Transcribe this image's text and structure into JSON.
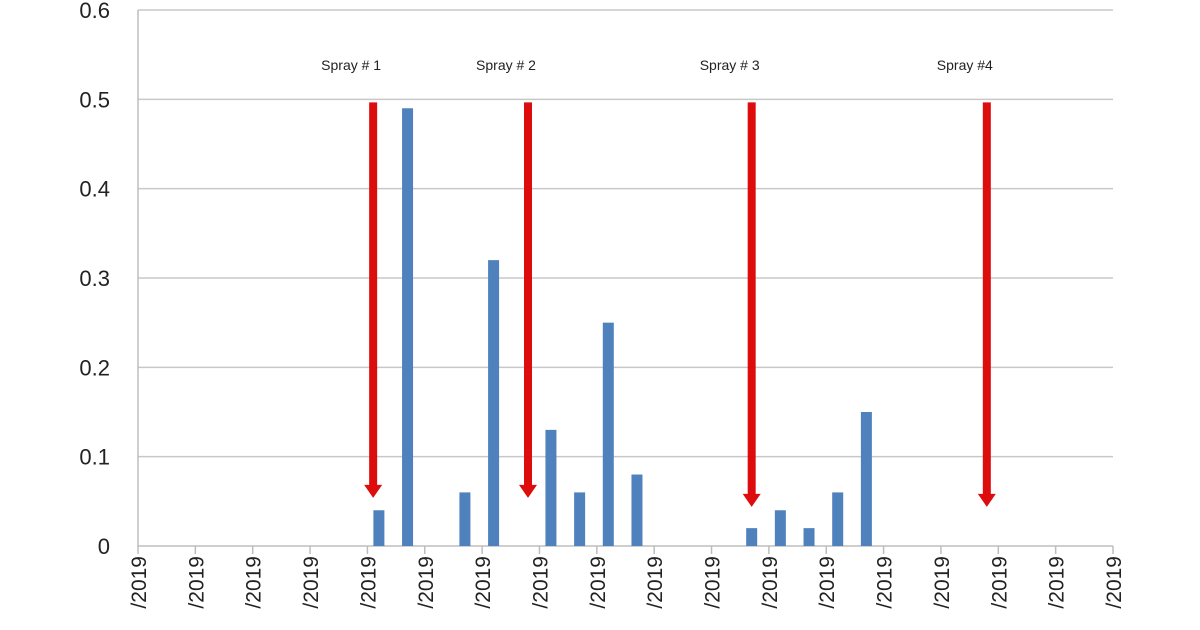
{
  "chart_data": {
    "type": "bar",
    "title": "",
    "xlabel": "",
    "ylabel": "",
    "ylim": [
      0,
      0.6
    ],
    "yticks": [
      "0",
      "0.1",
      "0.2",
      "0.3",
      "0.4",
      "0.5",
      "0.6"
    ],
    "grid": true,
    "x_tick_labels": [
      "/2019",
      "/2019",
      "/2019",
      "/2019",
      "/2019",
      "/2019",
      "/2019",
      "/2019",
      "/2019",
      "/2019",
      "/2019",
      "/2019",
      "/2019",
      "/2019",
      "/2019",
      "/2019",
      "/2019",
      "/2019"
    ],
    "bars": [
      {
        "x": 4.2,
        "value": 0.04
      },
      {
        "x": 4.7,
        "value": 0.49
      },
      {
        "x": 5.7,
        "value": 0.06
      },
      {
        "x": 6.2,
        "value": 0.32
      },
      {
        "x": 7.2,
        "value": 0.13
      },
      {
        "x": 7.7,
        "value": 0.06
      },
      {
        "x": 8.2,
        "value": 0.25
      },
      {
        "x": 8.7,
        "value": 0.08
      },
      {
        "x": 10.7,
        "value": 0.02
      },
      {
        "x": 11.2,
        "value": 0.04
      },
      {
        "x": 11.7,
        "value": 0.02
      },
      {
        "x": 12.2,
        "value": 0.06
      },
      {
        "x": 12.7,
        "value": 0.15
      }
    ],
    "bar_color": "#4f81bd",
    "annotations": [
      {
        "label": "Spray # 1",
        "x": 4.1,
        "arrow_from": 0.5,
        "arrow_to": 0.065
      },
      {
        "label": "Spray # 2",
        "x": 6.8,
        "arrow_from": 0.5,
        "arrow_to": 0.065
      },
      {
        "label": "Spray # 3",
        "x": 10.7,
        "arrow_from": 0.5,
        "arrow_to": 0.055
      },
      {
        "label": "Spray #4",
        "x": 14.8,
        "arrow_from": 0.5,
        "arrow_to": 0.055
      }
    ],
    "arrow_color": "#dd0d0d"
  }
}
